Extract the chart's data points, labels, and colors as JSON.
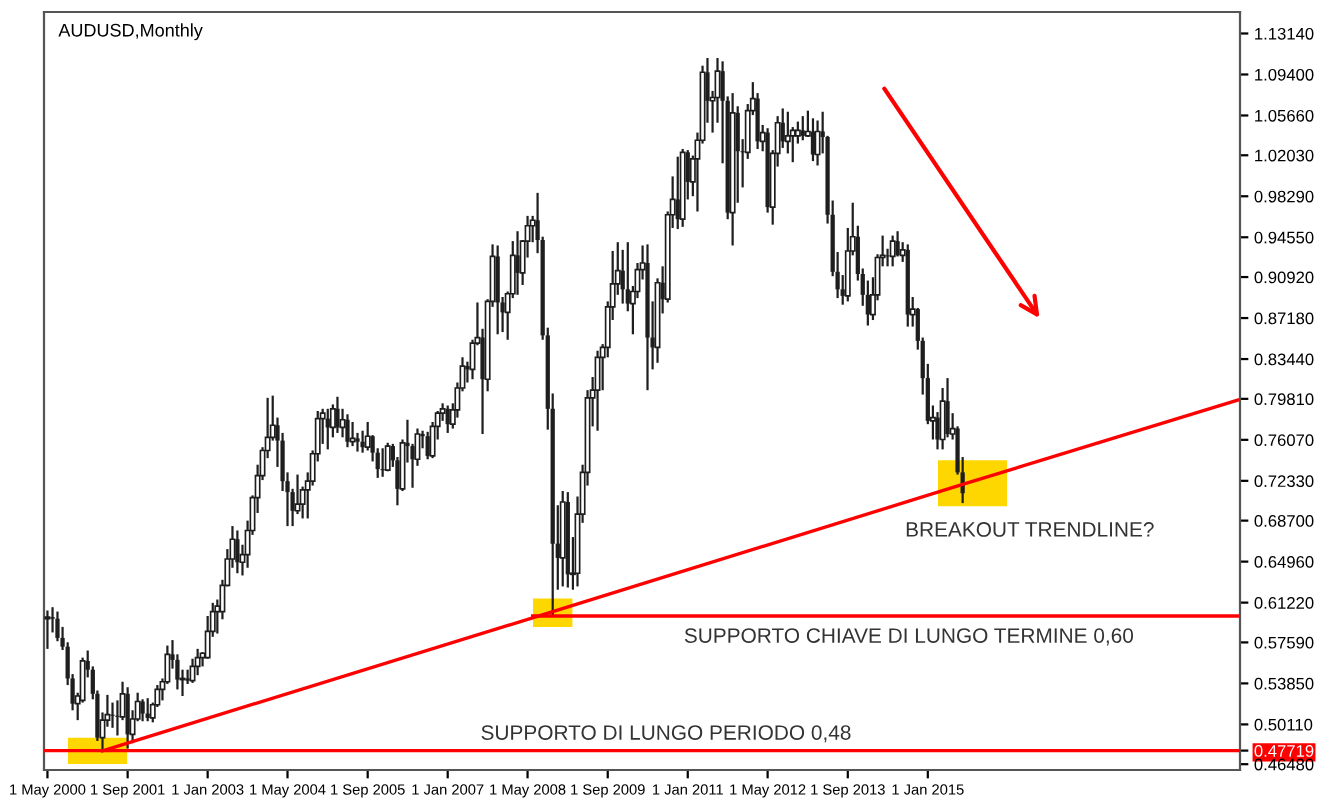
{
  "chart_data": {
    "type": "candlestick",
    "title": "AUDUSD,Monthly",
    "x": [
      "2000-05",
      "2000-06",
      "2000-07",
      "2000-08",
      "2000-09",
      "2000-10",
      "2000-11",
      "2000-12",
      "2001-01",
      "2001-02",
      "2001-03",
      "2001-04",
      "2001-05",
      "2001-06",
      "2001-07",
      "2001-08",
      "2001-09",
      "2001-10",
      "2001-11",
      "2001-12",
      "2002-01",
      "2002-02",
      "2002-03",
      "2002-04",
      "2002-05",
      "2002-06",
      "2002-07",
      "2002-08",
      "2002-09",
      "2002-10",
      "2002-11",
      "2002-12",
      "2003-01",
      "2003-02",
      "2003-03",
      "2003-04",
      "2003-05",
      "2003-06",
      "2003-07",
      "2003-08",
      "2003-09",
      "2003-10",
      "2003-11",
      "2003-12",
      "2004-01",
      "2004-02",
      "2004-03",
      "2004-04",
      "2004-05",
      "2004-06",
      "2004-07",
      "2004-08",
      "2004-09",
      "2004-10",
      "2004-11",
      "2004-12",
      "2005-01",
      "2005-02",
      "2005-03",
      "2005-04",
      "2005-05",
      "2005-06",
      "2005-07",
      "2005-08",
      "2005-09",
      "2005-10",
      "2005-11",
      "2005-12",
      "2006-01",
      "2006-02",
      "2006-03",
      "2006-04",
      "2006-05",
      "2006-06",
      "2006-07",
      "2006-08",
      "2006-09",
      "2006-10",
      "2006-11",
      "2006-12",
      "2007-01",
      "2007-02",
      "2007-03",
      "2007-04",
      "2007-05",
      "2007-06",
      "2007-07",
      "2007-08",
      "2007-09",
      "2007-10",
      "2007-11",
      "2007-12",
      "2008-01",
      "2008-02",
      "2008-03",
      "2008-04",
      "2008-05",
      "2008-06",
      "2008-07",
      "2008-08",
      "2008-09",
      "2008-10",
      "2008-11",
      "2008-12",
      "2009-01",
      "2009-02",
      "2009-03",
      "2009-04",
      "2009-05",
      "2009-06",
      "2009-07",
      "2009-08",
      "2009-09",
      "2009-10",
      "2009-11",
      "2009-12",
      "2010-01",
      "2010-02",
      "2010-03",
      "2010-04",
      "2010-05",
      "2010-06",
      "2010-07",
      "2010-08",
      "2010-09",
      "2010-10",
      "2010-11",
      "2010-12",
      "2011-01",
      "2011-02",
      "2011-03",
      "2011-04",
      "2011-05",
      "2011-06",
      "2011-07",
      "2011-08",
      "2011-09",
      "2011-10",
      "2011-11",
      "2011-12",
      "2012-01",
      "2012-02",
      "2012-03",
      "2012-04",
      "2012-05",
      "2012-06",
      "2012-07",
      "2012-08",
      "2012-09",
      "2012-10",
      "2012-11",
      "2012-12",
      "2013-01",
      "2013-02",
      "2013-03",
      "2013-04",
      "2013-05",
      "2013-06",
      "2013-07",
      "2013-08",
      "2013-09",
      "2013-10",
      "2013-11",
      "2013-12",
      "2014-01",
      "2014-02",
      "2014-03",
      "2014-04",
      "2014-05",
      "2014-06",
      "2014-07",
      "2014-08",
      "2014-09",
      "2014-10",
      "2014-11",
      "2014-12",
      "2015-01",
      "2015-02",
      "2015-03",
      "2015-04",
      "2015-05",
      "2015-06",
      "2015-07",
      "2015-08"
    ],
    "ohlc": [
      [
        0.5975,
        0.604,
        0.571,
        0.599
      ],
      [
        0.599,
        0.607,
        0.586,
        0.5975
      ],
      [
        0.5975,
        0.603,
        0.578,
        0.58
      ],
      [
        0.58,
        0.589,
        0.57,
        0.572
      ],
      [
        0.572,
        0.575,
        0.538,
        0.543
      ],
      [
        0.543,
        0.546,
        0.515,
        0.52
      ],
      [
        0.52,
        0.529,
        0.506,
        0.527
      ],
      [
        0.523,
        0.561,
        0.522,
        0.559
      ],
      [
        0.559,
        0.5675,
        0.545,
        0.551
      ],
      [
        0.551,
        0.553,
        0.525,
        0.529
      ],
      [
        0.529,
        0.531,
        0.487,
        0.489
      ],
      [
        0.489,
        0.511,
        0.4772,
        0.505
      ],
      [
        0.505,
        0.527,
        0.5,
        0.51
      ],
      [
        0.51,
        0.52,
        0.499,
        0.509
      ],
      [
        0.509,
        0.522,
        0.492,
        0.508
      ],
      [
        0.508,
        0.539,
        0.506,
        0.529
      ],
      [
        0.529,
        0.534,
        0.48,
        0.492
      ],
      [
        0.492,
        0.513,
        0.485,
        0.506
      ],
      [
        0.506,
        0.529,
        0.505,
        0.522
      ],
      [
        0.522,
        0.523,
        0.505,
        0.511
      ],
      [
        0.511,
        0.524,
        0.505,
        0.507
      ],
      [
        0.507,
        0.52,
        0.504,
        0.519
      ],
      [
        0.519,
        0.536,
        0.518,
        0.533
      ],
      [
        0.533,
        0.542,
        0.524,
        0.54
      ],
      [
        0.54,
        0.572,
        0.539,
        0.565
      ],
      [
        0.565,
        0.577,
        0.553,
        0.56
      ],
      [
        0.56,
        0.564,
        0.534,
        0.542
      ],
      [
        0.542,
        0.55,
        0.528,
        0.543
      ],
      [
        0.543,
        0.55,
        0.539,
        0.541
      ],
      [
        0.541,
        0.56,
        0.54,
        0.554
      ],
      [
        0.554,
        0.569,
        0.547,
        0.562
      ],
      [
        0.562,
        0.566,
        0.555,
        0.566
      ],
      [
        0.562,
        0.599,
        0.562,
        0.586
      ],
      [
        0.586,
        0.611,
        0.582,
        0.604
      ],
      [
        0.604,
        0.614,
        0.585,
        0.609
      ],
      [
        0.604,
        0.632,
        0.598,
        0.628
      ],
      [
        0.628,
        0.66,
        0.628,
        0.652
      ],
      [
        0.652,
        0.681,
        0.645,
        0.67
      ],
      [
        0.67,
        0.677,
        0.64,
        0.649
      ],
      [
        0.649,
        0.664,
        0.638,
        0.656
      ],
      [
        0.656,
        0.686,
        0.645,
        0.678
      ],
      [
        0.678,
        0.709,
        0.675,
        0.708
      ],
      [
        0.708,
        0.737,
        0.695,
        0.728
      ],
      [
        0.728,
        0.753,
        0.725,
        0.751
      ],
      [
        0.751,
        0.798,
        0.745,
        0.763
      ],
      [
        0.763,
        0.8,
        0.761,
        0.774
      ],
      [
        0.774,
        0.78,
        0.737,
        0.76
      ],
      [
        0.76,
        0.766,
        0.715,
        0.723
      ],
      [
        0.723,
        0.73,
        0.683,
        0.713
      ],
      [
        0.713,
        0.715,
        0.683,
        0.696
      ],
      [
        0.696,
        0.728,
        0.694,
        0.702
      ],
      [
        0.702,
        0.717,
        0.69,
        0.715
      ],
      [
        0.715,
        0.73,
        0.69,
        0.723
      ],
      [
        0.723,
        0.75,
        0.72,
        0.748
      ],
      [
        0.748,
        0.786,
        0.742,
        0.78
      ],
      [
        0.78,
        0.788,
        0.758,
        0.785
      ],
      [
        0.78,
        0.788,
        0.753,
        0.772
      ],
      [
        0.772,
        0.792,
        0.764,
        0.789
      ],
      [
        0.789,
        0.799,
        0.768,
        0.772
      ],
      [
        0.772,
        0.788,
        0.764,
        0.779
      ],
      [
        0.779,
        0.783,
        0.755,
        0.759
      ],
      [
        0.759,
        0.776,
        0.756,
        0.762
      ],
      [
        0.762,
        0.766,
        0.751,
        0.759
      ],
      [
        0.759,
        0.768,
        0.75,
        0.754
      ],
      [
        0.754,
        0.776,
        0.752,
        0.764
      ],
      [
        0.764,
        0.764,
        0.742,
        0.749
      ],
      [
        0.749,
        0.752,
        0.727,
        0.734
      ],
      [
        0.734,
        0.752,
        0.728,
        0.733
      ],
      [
        0.733,
        0.757,
        0.733,
        0.755
      ],
      [
        0.755,
        0.756,
        0.737,
        0.742
      ],
      [
        0.742,
        0.744,
        0.702,
        0.716
      ],
      [
        0.716,
        0.76,
        0.715,
        0.758
      ],
      [
        0.758,
        0.778,
        0.741,
        0.755
      ],
      [
        0.755,
        0.756,
        0.718,
        0.743
      ],
      [
        0.743,
        0.77,
        0.738,
        0.766
      ],
      [
        0.766,
        0.768,
        0.754,
        0.764
      ],
      [
        0.764,
        0.767,
        0.744,
        0.746
      ],
      [
        0.746,
        0.776,
        0.745,
        0.773
      ],
      [
        0.773,
        0.786,
        0.762,
        0.785
      ],
      [
        0.785,
        0.793,
        0.779,
        0.789
      ],
      [
        0.789,
        0.791,
        0.768,
        0.775
      ],
      [
        0.775,
        0.793,
        0.772,
        0.788
      ],
      [
        0.788,
        0.812,
        0.782,
        0.808
      ],
      [
        0.808,
        0.835,
        0.806,
        0.828
      ],
      [
        0.828,
        0.831,
        0.814,
        0.825
      ],
      [
        0.825,
        0.851,
        0.817,
        0.849
      ],
      [
        0.849,
        0.885,
        0.848,
        0.854
      ],
      [
        0.854,
        0.861,
        0.767,
        0.816
      ],
      [
        0.816,
        0.888,
        0.806,
        0.887
      ],
      [
        0.887,
        0.938,
        0.883,
        0.928
      ],
      [
        0.928,
        0.937,
        0.858,
        0.886
      ],
      [
        0.886,
        0.89,
        0.86,
        0.877
      ],
      [
        0.877,
        0.895,
        0.853,
        0.894
      ],
      [
        0.894,
        0.941,
        0.891,
        0.929
      ],
      [
        0.929,
        0.95,
        0.894,
        0.913
      ],
      [
        0.913,
        0.942,
        0.903,
        0.942
      ],
      [
        0.942,
        0.964,
        0.928,
        0.956
      ],
      [
        0.956,
        0.964,
        0.942,
        0.961
      ],
      [
        0.961,
        0.985,
        0.932,
        0.943
      ],
      [
        0.943,
        0.945,
        0.853,
        0.856
      ],
      [
        0.856,
        0.862,
        0.771,
        0.789
      ],
      [
        0.789,
        0.802,
        0.601,
        0.666
      ],
      [
        0.666,
        0.7,
        0.625,
        0.653
      ],
      [
        0.653,
        0.713,
        0.628,
        0.704
      ],
      [
        0.704,
        0.712,
        0.627,
        0.638
      ],
      [
        0.638,
        0.671,
        0.625,
        0.639
      ],
      [
        0.639,
        0.708,
        0.628,
        0.693
      ],
      [
        0.693,
        0.737,
        0.686,
        0.731
      ],
      [
        0.731,
        0.805,
        0.72,
        0.799
      ],
      [
        0.799,
        0.817,
        0.774,
        0.806
      ],
      [
        0.806,
        0.841,
        0.77,
        0.836
      ],
      [
        0.836,
        0.847,
        0.807,
        0.845
      ],
      [
        0.845,
        0.886,
        0.837,
        0.882
      ],
      [
        0.882,
        0.932,
        0.871,
        0.903
      ],
      [
        0.903,
        0.94,
        0.894,
        0.915
      ],
      [
        0.915,
        0.933,
        0.886,
        0.898
      ],
      [
        0.898,
        0.94,
        0.879,
        0.885
      ],
      [
        0.885,
        0.9,
        0.858,
        0.896
      ],
      [
        0.896,
        0.921,
        0.891,
        0.916
      ],
      [
        0.916,
        0.937,
        0.908,
        0.922
      ],
      [
        0.922,
        0.938,
        0.807,
        0.854
      ],
      [
        0.854,
        0.886,
        0.826,
        0.845
      ],
      [
        0.845,
        0.907,
        0.832,
        0.904
      ],
      [
        0.904,
        0.918,
        0.877,
        0.889
      ],
      [
        0.889,
        0.968,
        0.887,
        0.966
      ],
      [
        0.966,
        1.0,
        0.955,
        0.98
      ],
      [
        0.98,
        1.018,
        0.954,
        0.962
      ],
      [
        0.962,
        1.025,
        0.956,
        1.023
      ],
      [
        1.023,
        1.024,
        0.981,
        0.996
      ],
      [
        0.996,
        1.019,
        0.984,
        1.017
      ],
      [
        1.017,
        1.04,
        0.97,
        1.034
      ],
      [
        1.034,
        1.101,
        1.032,
        1.096
      ],
      [
        1.096,
        1.108,
        1.051,
        1.07
      ],
      [
        1.07,
        1.078,
        1.042,
        1.073
      ],
      [
        1.073,
        1.108,
        1.051,
        1.097
      ],
      [
        1.097,
        1.105,
        1.014,
        1.07
      ],
      [
        1.07,
        1.073,
        0.963,
        0.968
      ],
      [
        0.968,
        1.076,
        0.939,
        1.059
      ],
      [
        1.059,
        1.064,
        0.978,
        1.024
      ],
      [
        1.024,
        1.034,
        0.992,
        1.023
      ],
      [
        1.023,
        1.066,
        1.018,
        1.061
      ],
      [
        1.061,
        1.086,
        1.058,
        1.072
      ],
      [
        1.072,
        1.076,
        1.027,
        1.033
      ],
      [
        1.033,
        1.047,
        1.025,
        1.041
      ],
      [
        1.041,
        1.044,
        0.969,
        0.973
      ],
      [
        0.973,
        1.024,
        0.958,
        1.022
      ],
      [
        1.022,
        1.055,
        1.011,
        1.05
      ],
      [
        1.05,
        1.062,
        1.028,
        1.033
      ],
      [
        1.033,
        1.059,
        1.023,
        1.038
      ],
      [
        1.038,
        1.045,
        1.015,
        1.043
      ],
      [
        1.038,
        1.05,
        1.032,
        1.043
      ],
      [
        1.043,
        1.055,
        1.035,
        1.038
      ],
      [
        1.038,
        1.06,
        1.038,
        1.042
      ],
      [
        1.042,
        1.053,
        1.016,
        1.021
      ],
      [
        1.021,
        1.051,
        1.012,
        1.042
      ],
      [
        1.042,
        1.059,
        1.023,
        1.037
      ],
      [
        1.037,
        1.037,
        0.959,
        0.966
      ],
      [
        0.966,
        0.978,
        0.911,
        0.914
      ],
      [
        0.914,
        0.931,
        0.891,
        0.898
      ],
      [
        0.898,
        0.91,
        0.885,
        0.892
      ],
      [
        0.892,
        0.953,
        0.888,
        0.933
      ],
      [
        0.933,
        0.976,
        0.93,
        0.946
      ],
      [
        0.946,
        0.955,
        0.907,
        0.912
      ],
      [
        0.912,
        0.916,
        0.884,
        0.893
      ],
      [
        0.893,
        0.905,
        0.866,
        0.875
      ],
      [
        0.875,
        0.908,
        0.871,
        0.893
      ],
      [
        0.893,
        0.929,
        0.889,
        0.927
      ],
      [
        0.927,
        0.946,
        0.92,
        0.929
      ],
      [
        0.929,
        0.934,
        0.92,
        0.928
      ],
      [
        0.928,
        0.946,
        0.92,
        0.942
      ],
      [
        0.942,
        0.95,
        0.929,
        0.929
      ],
      [
        0.929,
        0.94,
        0.924,
        0.934
      ],
      [
        0.934,
        0.938,
        0.865,
        0.875
      ],
      [
        0.875,
        0.89,
        0.865,
        0.88
      ],
      [
        0.88,
        0.88,
        0.844,
        0.851
      ],
      [
        0.851,
        0.853,
        0.803,
        0.817
      ],
      [
        0.817,
        0.829,
        0.776,
        0.778
      ],
      [
        0.778,
        0.791,
        0.762,
        0.781
      ],
      [
        0.781,
        0.785,
        0.753,
        0.761
      ],
      [
        0.761,
        0.807,
        0.753,
        0.796
      ],
      [
        0.796,
        0.816,
        0.764,
        0.766
      ],
      [
        0.766,
        0.784,
        0.762,
        0.771
      ],
      [
        0.771,
        0.772,
        0.73,
        0.731
      ],
      [
        0.731,
        0.744,
        0.704,
        0.712
      ]
    ],
    "color": "#1e1e1e",
    "series": [
      {
        "type": "line",
        "color": "#ff0000",
        "x": [
          "2001-04",
          "2008-10",
          "2015-08",
          "2020-03"
        ],
        "values": [
          0.477,
          0.604,
          0.72,
          0.797
        ]
      },
      {
        "type": "line",
        "color": "#ff0000",
        "x": [
          "2008-06",
          "2020-03"
        ],
        "values": [
          0.6,
          0.6
        ]
      }
    ],
    "ref_lines": [
      {
        "axis": "y",
        "value": 0.47719,
        "label": "SUPPORTO DI LUNGO PERIODO 0,48",
        "color": "#ff0000"
      }
    ],
    "annotations": [
      "SUPPORTO CHIAVE DI LUNGO TERMINE 0,60",
      "BREAKOUT TRENDLINE?"
    ],
    "xlim": [
      "2000-04-10",
      "2020-03-15"
    ],
    "xticks": [
      {
        "value": "2000-05-01",
        "label": "1 May 2000"
      },
      {
        "value": "2001-09-01",
        "label": "1 Sep 2001"
      },
      {
        "value": "2003-01-01",
        "label": "1 Jan 2003"
      },
      {
        "value": "2004-05-01",
        "label": "1 May 2004"
      },
      {
        "value": "2005-09-01",
        "label": "1 Sep 2005"
      },
      {
        "value": "2007-01-01",
        "label": "1 Jan 2007"
      },
      {
        "value": "2008-05-01",
        "label": "1 May 2008"
      },
      {
        "value": "2009-09-01",
        "label": "1 Sep 2009"
      },
      {
        "value": "2011-01-01",
        "label": "1 Jan 2011"
      },
      {
        "value": "2012-05-01",
        "label": "1 May 2012"
      },
      {
        "value": "2013-09-01",
        "label": "1 Sep 2013"
      },
      {
        "value": "2015-01-01",
        "label": "1 Jan 2015"
      }
    ],
    "ylim": [
      0.4595,
      1.151
    ],
    "yticks": [
      {
        "value": 1.1314,
        "label": "1.13140"
      },
      {
        "value": 1.094,
        "label": "1.09400"
      },
      {
        "value": 1.0566,
        "label": "1.05660"
      },
      {
        "value": 1.0203,
        "label": "1.02030"
      },
      {
        "value": 0.9829,
        "label": "0.98290"
      },
      {
        "value": 0.9455,
        "label": "0.94550"
      },
      {
        "value": 0.9092,
        "label": "0.90920"
      },
      {
        "value": 0.8718,
        "label": "0.87180"
      },
      {
        "value": 0.8344,
        "label": "0.83440"
      },
      {
        "value": 0.7981,
        "label": "0.79810"
      },
      {
        "value": 0.7607,
        "label": "0.76070"
      },
      {
        "value": 0.7233,
        "label": "0.72330"
      },
      {
        "value": 0.687,
        "label": "0.68700"
      },
      {
        "value": 0.6496,
        "label": "0.64960"
      },
      {
        "value": 0.6122,
        "label": "0.61220"
      },
      {
        "value": 0.5759,
        "label": "0.57590"
      },
      {
        "value": 0.5385,
        "label": "0.53850"
      },
      {
        "value": 0.5011,
        "label": "0.50110"
      },
      {
        "value": 0.47719,
        "label": "0.47719"
      },
      {
        "value": 0.4648,
        "label": "0.46480"
      }
    ],
    "grid": false,
    "legend": false
  }
}
